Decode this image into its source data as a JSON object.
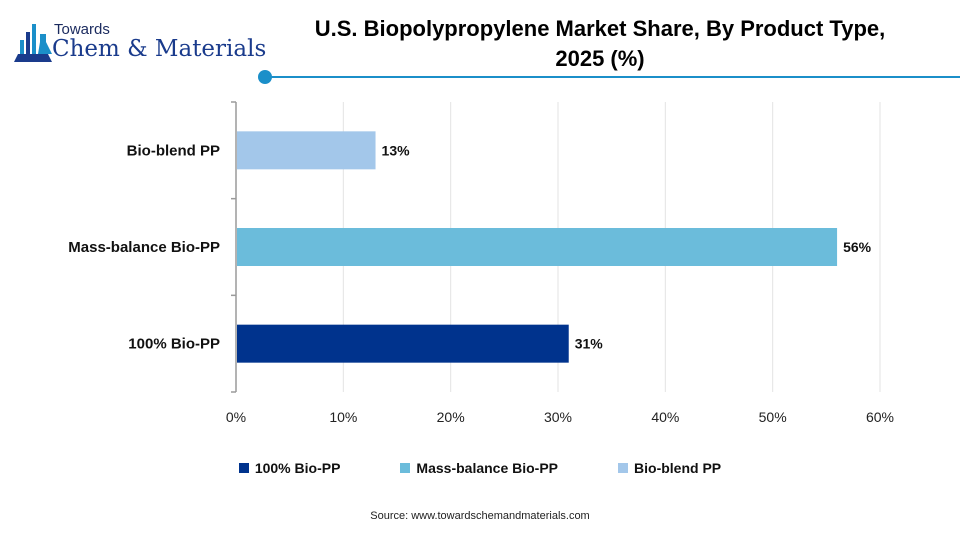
{
  "logo": {
    "top": "Towards",
    "main": "Chem & Materials"
  },
  "header": {
    "title_line1": "U.S. Biopolypropylene Market Share, By Product Type,",
    "title_line2": "2025 (%)"
  },
  "chart_data": {
    "type": "bar",
    "orientation": "horizontal",
    "title": "U.S. Biopolypropylene Market Share, By Product Type, 2025 (%)",
    "categories": [
      "Bio-blend PP",
      "Mass-balance Bio-PP",
      "100% Bio-PP"
    ],
    "values": [
      13,
      56,
      31
    ],
    "data_labels": [
      "13%",
      "56%",
      "31%"
    ],
    "colors": [
      "#a3c7ea",
      "#6bbcdb",
      "#00338d"
    ],
    "xlim": [
      0,
      60
    ],
    "x_ticks": [
      "0%",
      "10%",
      "20%",
      "30%",
      "40%",
      "50%",
      "60%"
    ],
    "xlabel": "",
    "ylabel": "",
    "grid": "vertical",
    "legend_position": "bottom"
  },
  "legend": [
    {
      "label": "100% Bio-PP",
      "color": "#00338d"
    },
    {
      "label": "Mass-balance Bio-PP",
      "color": "#6bbcdb"
    },
    {
      "label": "Bio-blend PP",
      "color": "#a3c7ea"
    }
  ],
  "footer": {
    "source": "Source: www.towardschemandmaterials.com"
  }
}
